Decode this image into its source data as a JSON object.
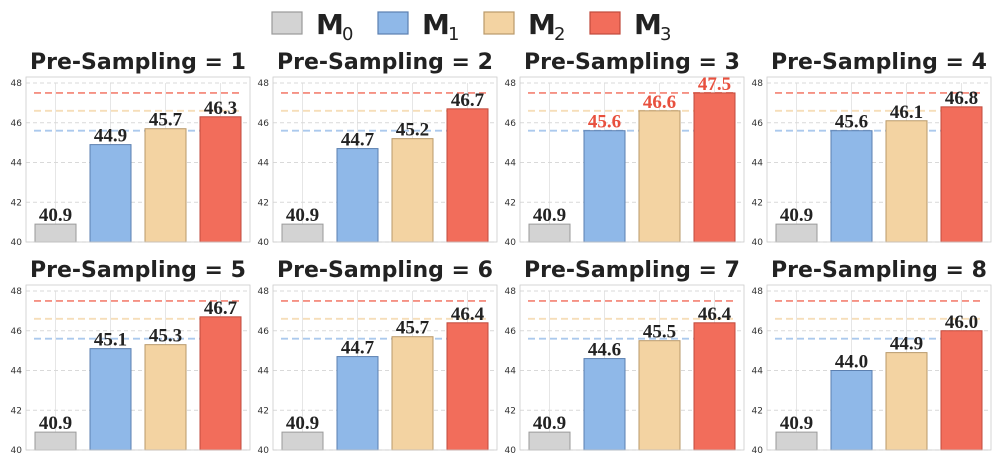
{
  "chart_data": {
    "type": "bar",
    "legend": [
      {
        "name": "M",
        "sub": "0",
        "color": "#d3d3d3",
        "edge": "#9a9a9a"
      },
      {
        "name": "M",
        "sub": "1",
        "color": "#8fb8e8",
        "edge": "#5b7fb0"
      },
      {
        "name": "M",
        "sub": "2",
        "color": "#f3d3a2",
        "edge": "#b9996a"
      },
      {
        "name": "M",
        "sub": "3",
        "color": "#f26d5b",
        "edge": "#c04a3c"
      }
    ],
    "legend_placement": "top-center",
    "ylim": [
      40,
      48
    ],
    "yticks": [
      "40",
      "42",
      "44",
      "46",
      "48"
    ],
    "reference_lines": [
      {
        "y": 47.5,
        "color": "#f26d5b"
      },
      {
        "y": 46.6,
        "color": "#f3d3a2"
      },
      {
        "y": 45.6,
        "color": "#8fb8e8"
      }
    ],
    "label_color_default": "#222222",
    "label_color_highlight": "#e8503e",
    "panels": [
      {
        "title": "Pre-Sampling = 1",
        "values": [
          40.9,
          44.9,
          45.7,
          46.3
        ],
        "labels": [
          "40.9",
          "44.9",
          "45.7",
          "46.3"
        ],
        "highlight": [
          false,
          false,
          false,
          false
        ]
      },
      {
        "title": "Pre-Sampling = 2",
        "values": [
          40.9,
          44.7,
          45.2,
          46.7
        ],
        "labels": [
          "40.9",
          "44.7",
          "45.2",
          "46.7"
        ],
        "highlight": [
          false,
          false,
          false,
          false
        ]
      },
      {
        "title": "Pre-Sampling = 3",
        "values": [
          40.9,
          45.6,
          46.6,
          47.5
        ],
        "labels": [
          "40.9",
          "45.6",
          "46.6",
          "47.5"
        ],
        "highlight": [
          false,
          true,
          true,
          true
        ]
      },
      {
        "title": "Pre-Sampling = 4",
        "values": [
          40.9,
          45.6,
          46.1,
          46.8
        ],
        "labels": [
          "40.9",
          "45.6",
          "46.1",
          "46.8"
        ],
        "highlight": [
          false,
          false,
          false,
          false
        ]
      },
      {
        "title": "Pre-Sampling = 5",
        "values": [
          40.9,
          45.1,
          45.3,
          46.7
        ],
        "labels": [
          "40.9",
          "45.1",
          "45.3",
          "46.7"
        ],
        "highlight": [
          false,
          false,
          false,
          false
        ]
      },
      {
        "title": "Pre-Sampling = 6",
        "values": [
          40.9,
          44.7,
          45.7,
          46.4
        ],
        "labels": [
          "40.9",
          "44.7",
          "45.7",
          "46.4"
        ],
        "highlight": [
          false,
          false,
          false,
          false
        ]
      },
      {
        "title": "Pre-Sampling = 7",
        "values": [
          40.9,
          44.6,
          45.5,
          46.4
        ],
        "labels": [
          "40.9",
          "44.6",
          "45.5",
          "46.4"
        ],
        "highlight": [
          false,
          false,
          false,
          false
        ]
      },
      {
        "title": "Pre-Sampling = 8",
        "values": [
          40.9,
          44.0,
          44.9,
          46.0
        ],
        "labels": [
          "40.9",
          "44.0",
          "44.9",
          "46.0"
        ],
        "highlight": [
          false,
          false,
          false,
          false
        ]
      }
    ]
  }
}
